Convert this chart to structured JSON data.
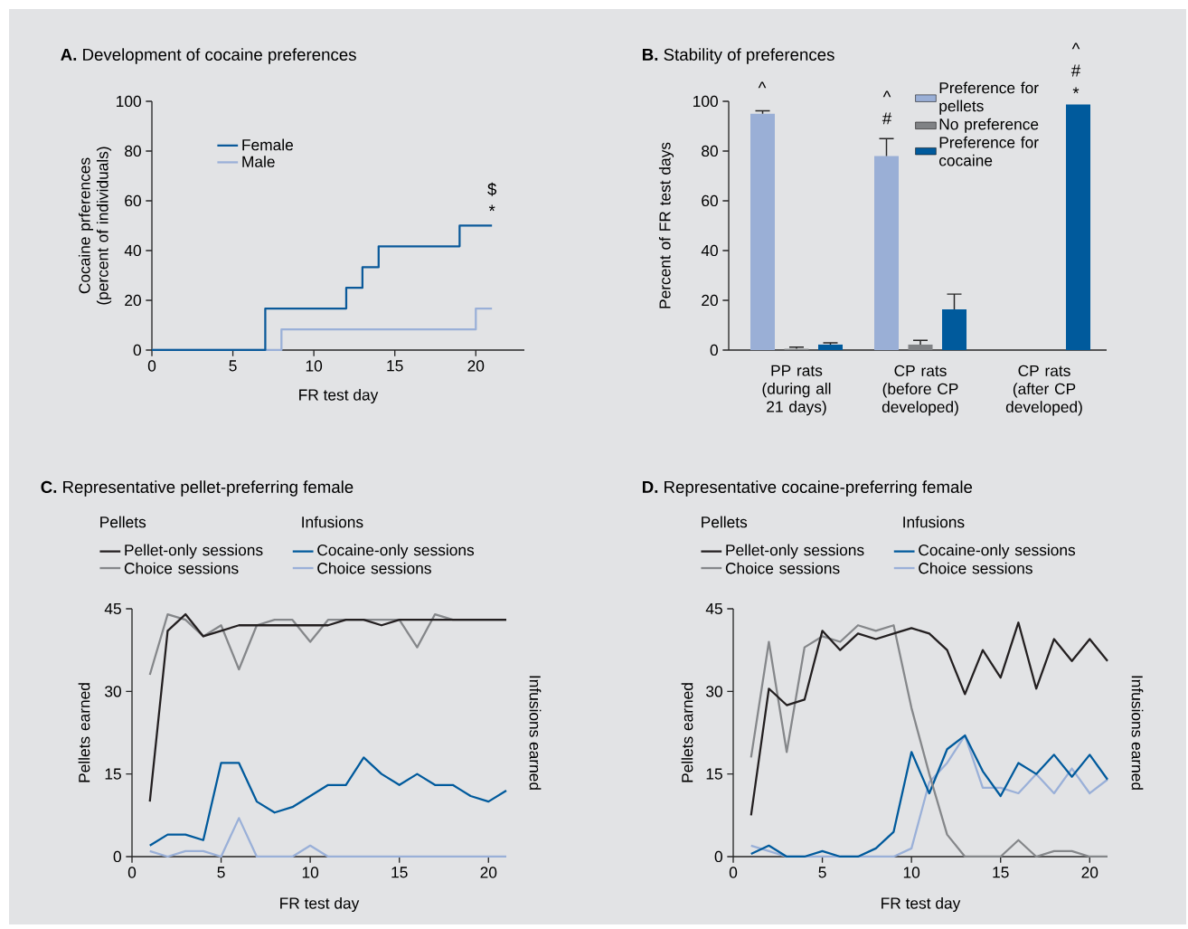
{
  "chart_data": [
    {
      "type": "step",
      "title": "**A.** Development of cocaine preferences",
      "xlabel": "FR test day",
      "ylabel": "Cocaine prferences (percent of individuals)",
      "xlim": [
        0,
        23
      ],
      "xticks": [
        0,
        5,
        10,
        15,
        20
      ],
      "ylim": [
        0,
        100
      ],
      "yticks": [
        0,
        20,
        40,
        60,
        80,
        100
      ],
      "legend": "top left",
      "series": [
        {
          "name": "Female",
          "color": "#0b5a9a",
          "x": [
            0,
            7,
            12,
            13,
            14,
            19,
            21
          ],
          "values": [
            0,
            16.7,
            25,
            33.3,
            41.7,
            50,
            50
          ]
        },
        {
          "name": "Male",
          "color": "#9ab0d8",
          "x": [
            0,
            8,
            20,
            21
          ],
          "values": [
            0,
            8.3,
            16.7,
            16.7
          ]
        }
      ],
      "annotations": [
        {
          "text": "*",
          "x": 21,
          "y": 50
        },
        {
          "text": "$",
          "x": 21,
          "y": 50
        }
      ]
    },
    {
      "type": "bar",
      "title": "**B.** Stability of preferences",
      "ylabel": "Percent of FR test days",
      "categories": [
        "PP rats (during all 21 days)",
        "CP rats (before CP developed)",
        "CP rats (after CP developed)"
      ],
      "ylim": [
        0,
        100
      ],
      "yticks": [
        0,
        20,
        40,
        60,
        80,
        100
      ],
      "legend": "top right",
      "series": [
        {
          "name": "Preference for pellets",
          "color": "#9aafd6",
          "values": [
            95,
            78,
            null
          ],
          "errors": [
            [
              95,
              96.2
            ],
            [
              78,
              85
            ],
            null
          ]
        },
        {
          "name": "No preference",
          "color": "#808285",
          "values": [
            0.5,
            2.2,
            null
          ],
          "errors": [
            [
              0.5,
              1.2
            ],
            [
              2.2,
              3.9
            ],
            null
          ]
        },
        {
          "name": "Preference for cocaine",
          "color": "#005a9c",
          "values": [
            2.2,
            16.4,
            98.7
          ],
          "errors": [
            [
              2.2,
              2.9
            ],
            [
              16.4,
              22.5
            ],
            null
          ]
        }
      ],
      "annotations": [
        "^",
        "#",
        "^",
        "*",
        "#",
        "^"
      ]
    },
    {
      "type": "line",
      "title": "**C.** Representative pellet-preferring female",
      "xlabel": "FR test day",
      "ylabel": "Pellets earned",
      "y2label": "Infusions earned",
      "x": [
        1,
        2,
        3,
        4,
        5,
        6,
        7,
        8,
        9,
        10,
        11,
        12,
        13,
        14,
        15,
        16,
        17,
        18,
        19,
        20,
        21
      ],
      "xlim": [
        0,
        21
      ],
      "xticks": [
        0,
        5,
        10,
        15,
        20
      ],
      "ylim": [
        0,
        45
      ],
      "yticks": [
        0,
        15,
        30,
        45
      ],
      "legend": "top",
      "annotations": [
        "Pellets",
        "Infusions"
      ],
      "series": [
        {
          "name": "Pellet-only sessions",
          "color": "#231f20",
          "values": [
            10,
            41,
            44,
            40,
            41,
            42,
            42,
            42,
            42,
            42,
            42,
            43,
            43,
            42,
            43,
            43,
            43,
            43,
            43,
            43,
            43
          ]
        },
        {
          "name": "Choice sessions",
          "color": "#85878a",
          "values": [
            33,
            44,
            43,
            40,
            42,
            34,
            42,
            43,
            43,
            39,
            43,
            43,
            43,
            43,
            43,
            38,
            44,
            43,
            43,
            43,
            43
          ]
        },
        {
          "name": "Cocaine-only sessions",
          "color": "#005a9c",
          "values": [
            2,
            4,
            4,
            3,
            17,
            17,
            10,
            8,
            9,
            11,
            13,
            13,
            18,
            15,
            13,
            15,
            13,
            13,
            11,
            10,
            12
          ]
        },
        {
          "name": "Choice sessions",
          "color": "#9ab0d8",
          "values": [
            1,
            0,
            1,
            1,
            0,
            7,
            0,
            0,
            0,
            2,
            0,
            0,
            0,
            0,
            0,
            0,
            0,
            0,
            0,
            0,
            0
          ]
        }
      ]
    },
    {
      "type": "line",
      "title": "**D.** Representative cocaine-preferring female",
      "xlabel": "FR test day",
      "ylabel": "Pellets earned",
      "y2label": "Infusions earned",
      "x": [
        1,
        2,
        3,
        4,
        5,
        6,
        7,
        8,
        9,
        10,
        11,
        12,
        13,
        14,
        15,
        16,
        17,
        18,
        19,
        20,
        21
      ],
      "xlim": [
        0,
        21
      ],
      "xticks": [
        0,
        5,
        10,
        15,
        20
      ],
      "ylim": [
        0,
        45
      ],
      "yticks": [
        0,
        15,
        30,
        45
      ],
      "legend": "top",
      "annotations": [
        "Pellets",
        "Infusions"
      ],
      "series": [
        {
          "name": "Pellet-only sessions",
          "color": "#231f20",
          "values": [
            7.5,
            30.5,
            27.5,
            28.5,
            41,
            37.5,
            40.5,
            39.5,
            40.5,
            41.5,
            40.5,
            37.5,
            29.5,
            37.5,
            32.5,
            42.5,
            30.5,
            39.5,
            35.5,
            39.5,
            35.5
          ]
        },
        {
          "name": "Choice sessions",
          "color": "#85878a",
          "values": [
            18,
            39,
            19,
            38,
            40,
            39,
            42,
            41,
            42,
            27,
            15,
            4,
            0,
            0,
            0,
            3,
            0,
            1,
            1,
            0,
            0
          ]
        },
        {
          "name": "Cocaine-only sessions",
          "color": "#005a9c",
          "values": [
            0.5,
            2,
            0,
            0,
            1,
            0,
            0,
            1.5,
            4.5,
            19,
            11.5,
            19.5,
            22,
            15.5,
            11,
            17,
            15,
            18.5,
            14.5,
            18.5,
            14
          ]
        },
        {
          "name": "Choice sessions",
          "color": "#9ab0d8",
          "values": [
            2,
            1,
            0,
            0,
            0,
            0,
            0,
            0,
            0,
            1.5,
            13.5,
            17,
            22,
            12.5,
            12.5,
            11.5,
            15,
            11.5,
            16,
            11.5,
            14
          ]
        }
      ]
    }
  ]
}
